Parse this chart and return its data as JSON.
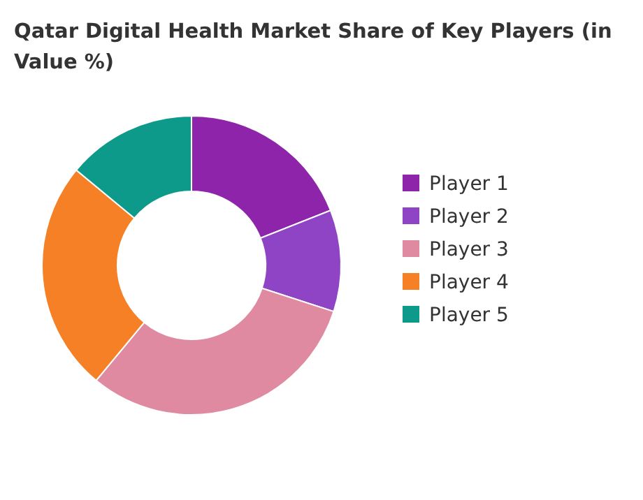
{
  "chart_data": {
    "type": "donut",
    "title": "Qatar Digital Health Market Share of Key Players (in Value %)",
    "categories": [
      "Player 1",
      "Player 2",
      "Player 3",
      "Player 4",
      "Player 5"
    ],
    "values": [
      19,
      11,
      31,
      25,
      14
    ],
    "colors": [
      "#8e24aa",
      "#8e44c4",
      "#e08aa2",
      "#f58025",
      "#0e9a8a"
    ],
    "legend": "right"
  }
}
